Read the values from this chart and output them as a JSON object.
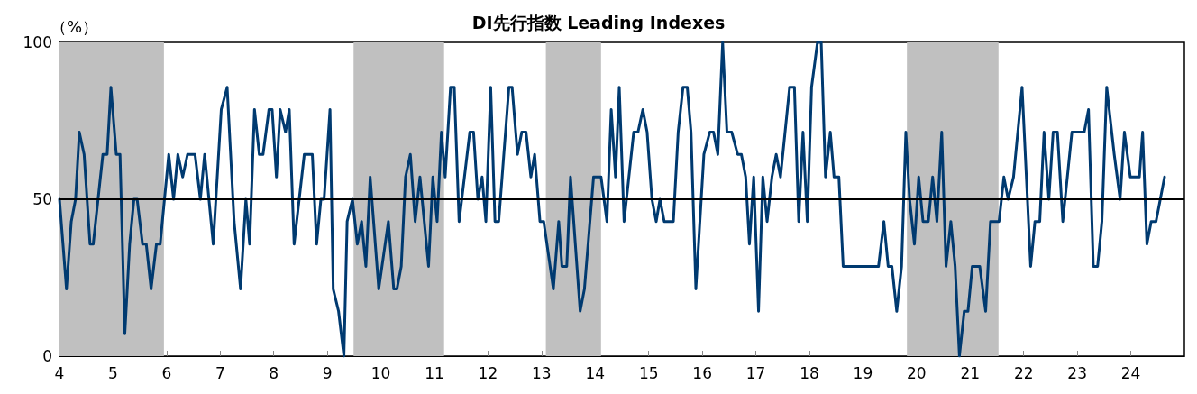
{
  "chart_data": {
    "type": "line",
    "title": "DI先行指数 Leading Indexes",
    "ylabel": "（%）",
    "xlim": [
      4,
      25
    ],
    "xticks": [
      4,
      5,
      6,
      7,
      8,
      9,
      10,
      11,
      12,
      13,
      14,
      15,
      16,
      17,
      18,
      19,
      20,
      21,
      22,
      23,
      24
    ],
    "ylim": [
      0,
      100
    ],
    "yticks": [
      0,
      50,
      100
    ],
    "marker": "none",
    "line_style": "solid",
    "ref_lines": [
      {
        "axis": "y",
        "value": 50,
        "color": "#000000"
      }
    ],
    "bands": [
      {
        "axis": "x",
        "from": 4,
        "to": 5.95,
        "color": "#c0c0c0"
      },
      {
        "axis": "x",
        "from": 9.49,
        "to": 11.18,
        "color": "#c0c0c0"
      },
      {
        "axis": "x",
        "from": 13.08,
        "to": 14.11,
        "color": "#c0c0c0"
      },
      {
        "axis": "x",
        "from": 19.82,
        "to": 21.53,
        "color": "#c0c0c0"
      }
    ],
    "series": [
      {
        "color": "#003a70",
        "x": [
          4.0,
          4.13,
          4.22,
          4.3,
          4.37,
          4.46,
          4.57,
          4.63,
          4.81,
          4.89,
          4.96,
          5.06,
          5.13,
          5.22,
          5.31,
          5.39,
          5.45,
          5.55,
          5.62,
          5.71,
          5.81,
          5.88,
          6.04,
          6.13,
          6.21,
          6.3,
          6.39,
          6.53,
          6.63,
          6.71,
          6.87,
          7.02,
          7.13,
          7.26,
          7.38,
          7.48,
          7.55,
          7.64,
          7.73,
          7.8,
          7.91,
          7.97,
          8.05,
          8.12,
          8.22,
          8.29,
          8.38,
          8.57,
          8.72,
          8.8,
          8.88,
          8.94,
          9.05,
          9.11,
          9.21,
          9.31,
          9.37,
          9.47,
          9.56,
          9.64,
          9.72,
          9.8,
          9.96,
          10.14,
          10.24,
          10.3,
          10.38,
          10.46,
          10.55,
          10.64,
          10.73,
          10.89,
          10.97,
          11.05,
          11.13,
          11.2,
          11.3,
          11.37,
          11.46,
          11.66,
          11.73,
          11.81,
          11.89,
          11.96,
          12.05,
          12.13,
          12.2,
          12.39,
          12.45,
          12.55,
          12.63,
          12.71,
          12.8,
          12.87,
          12.97,
          13.04,
          13.22,
          13.32,
          13.38,
          13.47,
          13.54,
          13.72,
          13.8,
          13.97,
          14.11,
          14.22,
          14.3,
          14.38,
          14.45,
          14.54,
          14.72,
          14.8,
          14.89,
          14.97,
          15.06,
          15.14,
          15.21,
          15.29,
          15.46,
          15.55,
          15.64,
          15.72,
          15.79,
          15.88,
          16.03,
          16.14,
          16.21,
          16.29,
          16.38,
          16.46,
          16.55,
          16.66,
          16.73,
          16.81,
          16.88,
          16.96,
          17.05,
          17.13,
          17.21,
          17.3,
          17.38,
          17.46,
          17.63,
          17.72,
          17.8,
          17.88,
          17.96,
          18.04,
          18.15,
          18.22,
          18.3,
          18.39,
          18.46,
          18.55,
          18.63,
          19.29,
          19.39,
          19.47,
          19.54,
          19.63,
          19.72,
          19.8,
          19.87,
          19.96,
          20.04,
          20.12,
          20.22,
          20.3,
          20.38,
          20.47,
          20.55,
          20.64,
          20.72,
          20.8,
          20.89,
          20.96,
          21.04,
          21.18,
          21.29,
          21.38,
          21.54,
          21.63,
          21.71,
          21.81,
          21.97,
          22.13,
          22.21,
          22.3,
          22.38,
          22.47,
          22.55,
          22.63,
          22.73,
          22.9,
          23.13,
          23.21,
          23.3,
          23.38,
          23.46,
          23.55,
          23.69,
          23.8,
          23.88,
          23.99,
          24.16,
          24.22,
          24.3,
          24.38,
          24.47,
          24.63
        ],
        "values": [
          50,
          21.4,
          42.9,
          50,
          71.4,
          64.3,
          35.7,
          35.7,
          64.3,
          64.3,
          85.7,
          64.3,
          64.3,
          7.1,
          35.7,
          50,
          50,
          35.7,
          35.7,
          21.4,
          35.7,
          35.7,
          64.3,
          50,
          64.3,
          57.1,
          64.3,
          64.3,
          50,
          64.3,
          35.7,
          78.6,
          85.7,
          42.9,
          21.4,
          50,
          35.7,
          78.6,
          64.3,
          64.3,
          78.6,
          78.6,
          57.1,
          78.6,
          71.4,
          78.6,
          35.7,
          64.3,
          64.3,
          35.7,
          50,
          50,
          78.6,
          21.4,
          14.3,
          0,
          42.9,
          50,
          35.7,
          42.9,
          28.6,
          57.1,
          21.4,
          42.9,
          21.4,
          21.4,
          28.6,
          57.1,
          64.3,
          42.9,
          57.1,
          28.6,
          57.1,
          42.9,
          71.4,
          57.1,
          85.7,
          85.7,
          42.9,
          71.4,
          71.4,
          50,
          57.1,
          42.9,
          85.7,
          42.9,
          42.9,
          85.7,
          85.7,
          64.3,
          71.4,
          71.4,
          57.1,
          64.3,
          42.9,
          42.9,
          21.4,
          42.9,
          28.6,
          28.6,
          57.1,
          14.3,
          21.4,
          57.1,
          57.1,
          42.9,
          78.6,
          57.1,
          85.7,
          42.9,
          71.4,
          71.4,
          78.6,
          71.4,
          50,
          42.9,
          50,
          42.9,
          42.9,
          71.4,
          85.7,
          85.7,
          71.4,
          21.4,
          64.3,
          71.4,
          71.4,
          64.3,
          100,
          71.4,
          71.4,
          64.3,
          64.3,
          57.1,
          35.7,
          57.1,
          14.3,
          57.1,
          42.9,
          57.1,
          64.3,
          57.1,
          85.7,
          85.7,
          42.9,
          71.4,
          42.9,
          85.7,
          100,
          100,
          57.1,
          71.4,
          57.1,
          57.1,
          28.6,
          28.6,
          42.9,
          28.6,
          28.6,
          14.3,
          28.6,
          71.4,
          50,
          35.7,
          57.1,
          42.9,
          42.9,
          57.1,
          42.9,
          71.4,
          28.6,
          42.9,
          28.6,
          0,
          14.3,
          14.3,
          28.6,
          28.6,
          14.3,
          42.9,
          42.9,
          57.1,
          50,
          57.1,
          85.7,
          28.6,
          42.9,
          42.9,
          71.4,
          50,
          71.4,
          71.4,
          42.9,
          71.4,
          71.4,
          78.6,
          28.6,
          28.6,
          42.9,
          85.7,
          64.3,
          50,
          71.4,
          57.1,
          57.1,
          71.4,
          35.7,
          42.9,
          42.9,
          57.1
        ]
      }
    ]
  }
}
